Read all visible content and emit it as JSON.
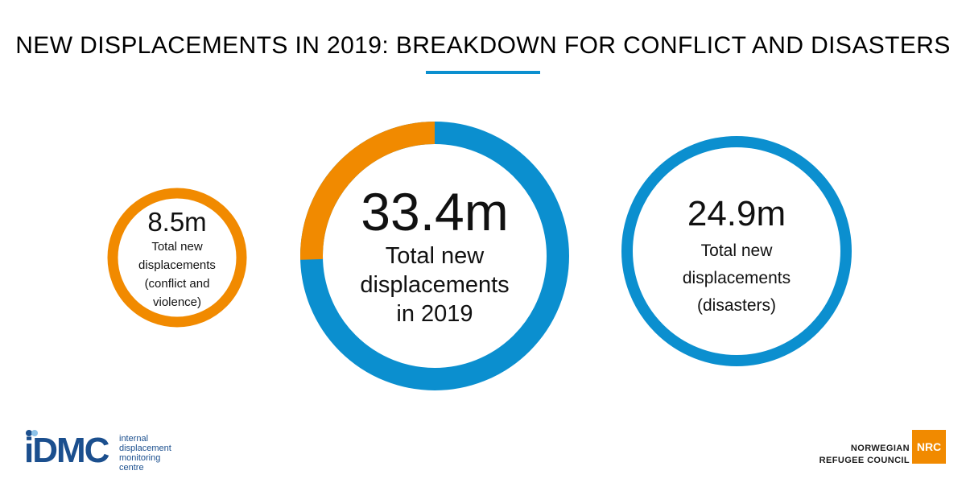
{
  "colors": {
    "conflict": "#f18a00",
    "disasters": "#0b8fcf",
    "rule": "#0b8fcf",
    "idmc_blue": "#1b4f8e",
    "idmc_dot_1": "#1b4f8e",
    "idmc_dot_2": "#8dc2e8",
    "nrc_orange": "#f18a00"
  },
  "chart_data": {
    "type": "pie",
    "title": "NEW DISPLACEMENTS IN 2019: BREAKDOWN FOR CONFLICT AND DISASTERS",
    "unit": "million",
    "total": {
      "value": 33.4,
      "value_label": "33.4m",
      "label_lines": [
        "Total new",
        "displacements",
        "in 2019"
      ]
    },
    "slices": [
      {
        "key": "conflict",
        "value": 8.5,
        "value_label": "8.5m",
        "label_lines": [
          "Total new",
          "displacements",
          "(conflict and",
          "violence)"
        ]
      },
      {
        "key": "disasters",
        "value": 24.9,
        "value_label": "24.9m",
        "label_lines": [
          "Total new",
          "displacements",
          "(disasters)"
        ]
      }
    ]
  },
  "logos": {
    "idmc": {
      "wordmark": "iDMC",
      "sub_lines": [
        "internal",
        "displacement",
        "monitoring",
        "centre"
      ]
    },
    "nrc": {
      "lines": [
        "NORWEGIAN",
        "REFUGEE COUNCIL"
      ],
      "badge": "NRC"
    }
  }
}
